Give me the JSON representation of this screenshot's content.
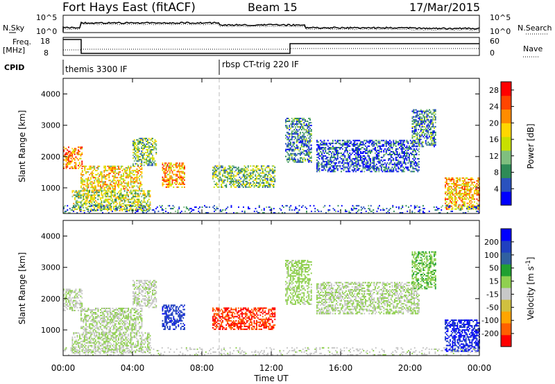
{
  "header": {
    "station": "Fort Hays East (fitACF)",
    "beam": "Beam 15",
    "date": "17/Mar/2015"
  },
  "noise_panel": {
    "left_label": "N.Sky",
    "right_label": "N.Search",
    "left_ticks": [
      "10^5",
      "10^0"
    ],
    "right_ticks": [
      "10^5",
      "10^0"
    ]
  },
  "freq_panel": {
    "left_label_1": "Freq.",
    "left_label_2": "[MHz]",
    "right_label": "Nave",
    "left_ticks": [
      "18",
      "8"
    ],
    "right_ticks": [
      "60",
      "0"
    ]
  },
  "cpid": {
    "label": "CPID",
    "segments": [
      {
        "name": "themis 3300 IF",
        "start_hour": 0
      },
      {
        "name": "rbsp CT-trig 220 IF",
        "start_hour": 9
      }
    ]
  },
  "colors": {
    "power_scale": [
      "#0000ff",
      "#2a52be",
      "#2e8b57",
      "#7fbf7f",
      "#c8e000",
      "#ffd700",
      "#ff8c00",
      "#ff4500",
      "#ff0000"
    ],
    "velocity_scale": [
      "#0000ff",
      "#2040c0",
      "#3060a0",
      "#20a030",
      "#90d050",
      "#c8c8c8",
      "#d0c040",
      "#ffa500",
      "#ff6000",
      "#ff0000"
    ]
  },
  "chart_data": [
    {
      "type": "heatmap",
      "panel": "power",
      "ylabel": "Slant Range [km]",
      "xlabel": "Time UT",
      "x_ticks": [
        "00:00",
        "04:00",
        "08:00",
        "12:00",
        "16:00",
        "20:00",
        "00:00"
      ],
      "y_ticks": [
        "1000",
        "2000",
        "3000",
        "4000"
      ],
      "ylim": [
        180,
        4500
      ],
      "xlim_hours": [
        0,
        24
      ],
      "colorbar": {
        "label": "Power [dB]",
        "ticks": [
          "4",
          "8",
          "12",
          "16",
          "20",
          "24",
          "28"
        ],
        "range": [
          0,
          30
        ]
      },
      "regions": [
        {
          "t0": 0.0,
          "t1": 1.1,
          "r0": 1600,
          "r1": 2300,
          "v": 22
        },
        {
          "t0": 1.0,
          "t1": 4.5,
          "r0": 900,
          "r1": 1700,
          "v": 18
        },
        {
          "t0": 4.0,
          "t1": 5.4,
          "r0": 1700,
          "r1": 2600,
          "v": 12
        },
        {
          "t0": 0.5,
          "t1": 5.0,
          "r0": 250,
          "r1": 900,
          "v": 14
        },
        {
          "t0": 5.7,
          "t1": 7.0,
          "r0": 1000,
          "r1": 1800,
          "v": 20
        },
        {
          "t0": 8.6,
          "t1": 12.2,
          "r0": 1000,
          "r1": 1700,
          "v": 12
        },
        {
          "t0": 12.8,
          "t1": 14.3,
          "r0": 1800,
          "r1": 3200,
          "v": 8
        },
        {
          "t0": 14.6,
          "t1": 20.5,
          "r0": 1500,
          "r1": 2500,
          "v": 5
        },
        {
          "t0": 20.1,
          "t1": 21.5,
          "r0": 2300,
          "r1": 3500,
          "v": 8
        },
        {
          "t0": 22.0,
          "t1": 24.0,
          "r0": 300,
          "r1": 1300,
          "v": 20
        },
        {
          "t0": 0.0,
          "t1": 24.0,
          "r0": 180,
          "r1": 450,
          "v": 5
        }
      ]
    },
    {
      "type": "heatmap",
      "panel": "velocity",
      "ylabel": "Slant Range [km]",
      "xlabel": "Time UT",
      "x_ticks": [
        "00:00",
        "04:00",
        "08:00",
        "12:00",
        "16:00",
        "20:00",
        "00:00"
      ],
      "y_ticks": [
        "1000",
        "2000",
        "3000",
        "4000"
      ],
      "ylim": [
        180,
        4500
      ],
      "xlim_hours": [
        0,
        24
      ],
      "colorbar": {
        "label": "Velocity [m s-1]",
        "ticks": [
          "200",
          "100",
          "50",
          "15",
          "-15",
          "-50",
          "-100",
          "-200"
        ],
        "range": [
          -250,
          250
        ]
      },
      "regions": [
        {
          "t0": 0.0,
          "t1": 1.1,
          "r0": 1600,
          "r1": 2300,
          "v": -5
        },
        {
          "t0": 1.0,
          "t1": 4.5,
          "r0": 900,
          "r1": 1700,
          "v": 0
        },
        {
          "t0": 4.0,
          "t1": 5.4,
          "r0": 1700,
          "r1": 2600,
          "v": -10
        },
        {
          "t0": 0.5,
          "t1": 5.0,
          "r0": 250,
          "r1": 900,
          "v": 0
        },
        {
          "t0": 5.7,
          "t1": 7.0,
          "r0": 1000,
          "r1": 1800,
          "v": 180
        },
        {
          "t0": 8.6,
          "t1": 12.2,
          "r0": 1000,
          "r1": 1700,
          "v": -200
        },
        {
          "t0": 12.8,
          "t1": 14.3,
          "r0": 1800,
          "r1": 3200,
          "v": 20
        },
        {
          "t0": 14.6,
          "t1": 20.5,
          "r0": 1500,
          "r1": 2500,
          "v": 0
        },
        {
          "t0": 20.1,
          "t1": 21.5,
          "r0": 2300,
          "r1": 3500,
          "v": 40
        },
        {
          "t0": 22.0,
          "t1": 24.0,
          "r0": 300,
          "r1": 1300,
          "v": 200
        },
        {
          "t0": 0.0,
          "t1": 24.0,
          "r0": 180,
          "r1": 450,
          "v": -20
        }
      ]
    }
  ]
}
